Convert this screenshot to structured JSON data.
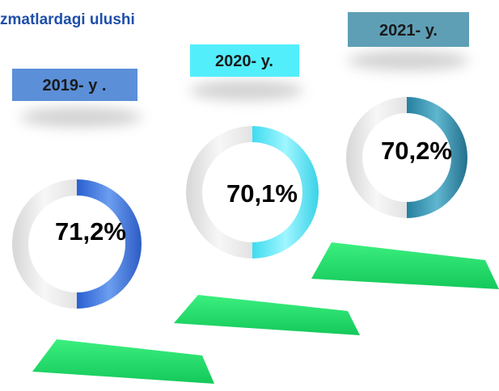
{
  "title": "zmatlardagi ulushi",
  "items": [
    {
      "year": "2019- y .",
      "value": "71,2%"
    },
    {
      "year": "2020- y.",
      "value": "70,1%"
    },
    {
      "year": "2021- y.",
      "value": "70,2%"
    }
  ]
}
